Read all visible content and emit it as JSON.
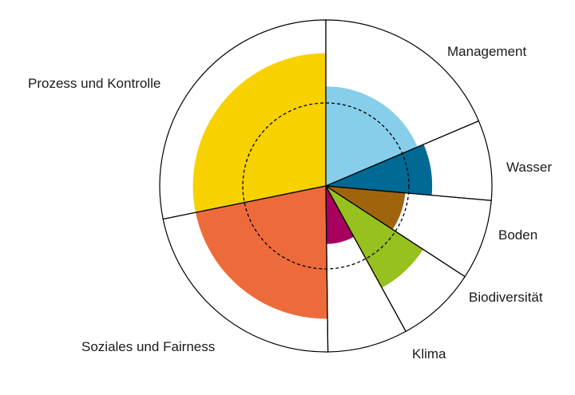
{
  "chart_data": {
    "type": "polar-area",
    "categories": [
      "Management",
      "Wasser",
      "Boden",
      "Biodiversität",
      "Klima",
      "Soziales und Fairness",
      "Prozess und Kontrolle"
    ],
    "category_widths": [
      0.186,
      0.078,
      0.078,
      0.078,
      0.078,
      0.22,
      0.282
    ],
    "series": [
      {
        "values": [
          0.6,
          0.64,
          0.48,
          0.7,
          0.35,
          0.8,
          0.8
        ]
      }
    ],
    "reference_circle": 0.5,
    "ylim": [
      0,
      1
    ],
    "colors": {
      "Management": "#87ceeb",
      "Wasser": "#006994",
      "Boden": "#a0640f",
      "Biodiversität": "#96c11f",
      "Klima": "#a8005e",
      "Soziales und Fairness": "#ed6b3a",
      "Prozess und Kontrolle": "#f7d100"
    }
  }
}
